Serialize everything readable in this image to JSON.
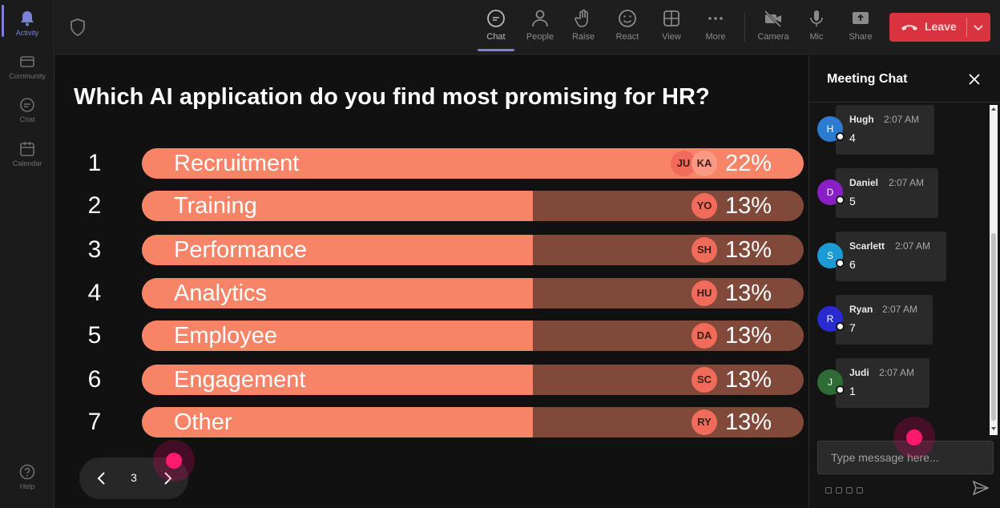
{
  "rail": {
    "items": [
      {
        "label": "Activity",
        "icon": "bell-icon"
      },
      {
        "label": "Community",
        "icon": "community-icon"
      },
      {
        "label": "Chat",
        "icon": "chat-icon"
      },
      {
        "label": "Calendar",
        "icon": "calendar-icon"
      },
      {
        "label": "Help",
        "icon": "help-icon"
      }
    ]
  },
  "toolbar": {
    "buttons": [
      {
        "label": "Chat",
        "icon": "chat-icon"
      },
      {
        "label": "People",
        "icon": "people-icon"
      },
      {
        "label": "Raise",
        "icon": "hand-icon"
      },
      {
        "label": "React",
        "icon": "smiley-icon"
      },
      {
        "label": "View",
        "icon": "grid-icon"
      },
      {
        "label": "More",
        "icon": "more-icon"
      },
      {
        "label": "Camera",
        "icon": "camera-off-icon"
      },
      {
        "label": "Mic",
        "icon": "mic-icon"
      },
      {
        "label": "Share",
        "icon": "share-icon"
      }
    ],
    "leave_label": "Leave"
  },
  "poll": {
    "question": "Which AI application do you find most promising for HR?",
    "options": [
      {
        "num": "1",
        "label": "Recruitment",
        "percent_text": "22%",
        "percent": 22,
        "chips": [
          "JU",
          "KA"
        ]
      },
      {
        "num": "2",
        "label": "Training",
        "percent_text": "13%",
        "percent": 13,
        "chips": [
          "YO"
        ]
      },
      {
        "num": "3",
        "label": "Performance",
        "percent_text": "13%",
        "percent": 13,
        "chips": [
          "SH"
        ]
      },
      {
        "num": "4",
        "label": "Analytics",
        "percent_text": "13%",
        "percent": 13,
        "chips": [
          "HU"
        ]
      },
      {
        "num": "5",
        "label": "Employee",
        "percent_text": "13%",
        "percent": 13,
        "chips": [
          "DA"
        ]
      },
      {
        "num": "6",
        "label": "Engagement",
        "percent_text": "13%",
        "percent": 13,
        "chips": [
          "SC"
        ]
      },
      {
        "num": "7",
        "label": "Other",
        "percent_text": "13%",
        "percent": 13,
        "chips": [
          "RY"
        ]
      }
    ],
    "page": "3"
  },
  "chat": {
    "title": "Meeting Chat",
    "messages": [
      {
        "initial": "H",
        "name": "Hugh",
        "time": "2:07 AM",
        "text": "4",
        "color": "#2b7bd1"
      },
      {
        "initial": "D",
        "name": "Daniel",
        "time": "2:07 AM",
        "text": "5",
        "color": "#8a1fc7"
      },
      {
        "initial": "S",
        "name": "Scarlett",
        "time": "2:07 AM",
        "text": "6",
        "color": "#1b9bd3"
      },
      {
        "initial": "R",
        "name": "Ryan",
        "time": "2:07 AM",
        "text": "7",
        "color": "#2a2ad1"
      },
      {
        "initial": "J",
        "name": "Judi",
        "time": "2:07 AM",
        "text": "1",
        "color": "#2f6b35"
      }
    ],
    "input_placeholder": "Type message here..."
  },
  "colors": {
    "bar_fill": "#f88468",
    "bar_track": "#80493a",
    "accent": "#7a82d8",
    "leave": "#d9333f"
  }
}
